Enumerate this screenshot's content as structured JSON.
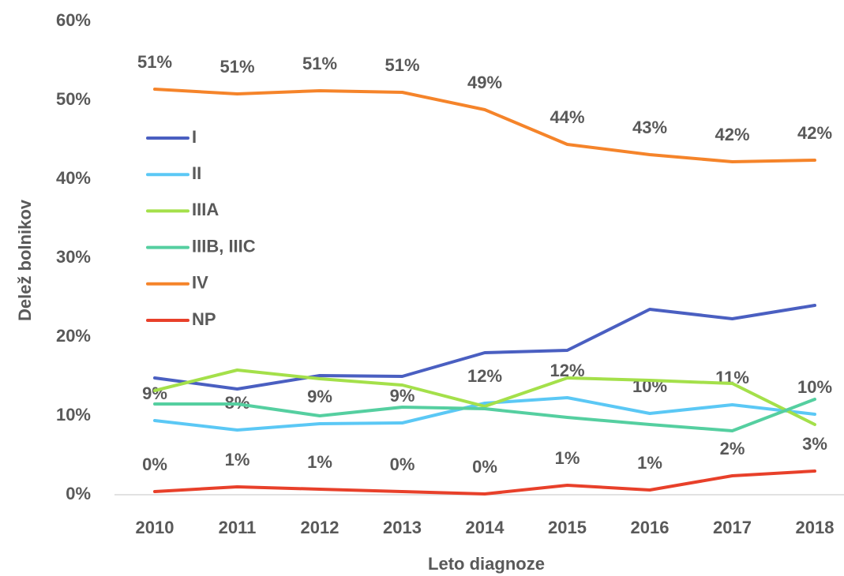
{
  "chart_data": {
    "type": "line",
    "y_label": "Delež bolnikov",
    "x_label": "Leto diagnoze",
    "categories": [
      "2010",
      "2011",
      "2012",
      "2013",
      "2014",
      "2015",
      "2016",
      "2017",
      "2018"
    ],
    "ylim": [
      0,
      60
    ],
    "yticks": [
      {
        "value": 0,
        "label": "0%"
      },
      {
        "value": 10,
        "label": "10%"
      },
      {
        "value": 20,
        "label": "20%"
      },
      {
        "value": 30,
        "label": "30%"
      },
      {
        "value": 40,
        "label": "40%"
      },
      {
        "value": 50,
        "label": "50%"
      },
      {
        "value": 60,
        "label": "60%"
      }
    ],
    "grid": false,
    "legend": "upper left",
    "series": [
      {
        "name": "I",
        "color": "#4a5fc1",
        "values": [
          14.8,
          13.4,
          15.1,
          15.0,
          18.0,
          18.3,
          23.5,
          22.3,
          24.0
        ]
      },
      {
        "name": "II",
        "color": "#5bc8f5",
        "values": [
          9.4,
          8.2,
          9.0,
          9.1,
          11.6,
          12.3,
          10.3,
          11.4,
          10.2
        ],
        "value_labels": [
          "9%",
          "8%",
          "9%",
          "9%",
          "12%",
          "12%",
          "10%",
          "11%",
          "10%"
        ]
      },
      {
        "name": "IIIA",
        "color": "#a4e04a",
        "values": [
          13.2,
          15.8,
          14.7,
          13.9,
          11.2,
          14.8,
          14.5,
          14.1,
          8.9
        ]
      },
      {
        "name": "IIIB, IIIC",
        "color": "#55cfa0",
        "values": [
          11.5,
          11.5,
          10.0,
          11.1,
          10.9,
          9.8,
          8.9,
          8.1,
          12.1
        ]
      },
      {
        "name": "IV",
        "color": "#f5842a",
        "values": [
          51.4,
          50.8,
          51.2,
          51.0,
          48.8,
          44.4,
          43.1,
          42.2,
          42.4
        ],
        "value_labels": [
          "51%",
          "51%",
          "51%",
          "51%",
          "49%",
          "44%",
          "43%",
          "42%",
          "42%"
        ]
      },
      {
        "name": "NP",
        "color": "#e8402a",
        "values": [
          0.4,
          1.0,
          0.7,
          0.4,
          0.1,
          1.2,
          0.6,
          2.4,
          3.0
        ],
        "value_labels": [
          "0%",
          "1%",
          "1%",
          "0%",
          "0%",
          "1%",
          "1%",
          "2%",
          "3%"
        ]
      }
    ]
  }
}
